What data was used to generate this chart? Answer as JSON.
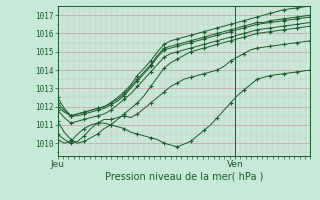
{
  "title": "Pression niveau de la mer( hPa )",
  "xlabel_jeu": "Jeu",
  "xlabel_ven": "Ven",
  "bg_color": "#c8e8d8",
  "grid_color_major": "#c8a0a0",
  "grid_color_minor": "#ddc0c0",
  "line_color": "#1a5c2a",
  "ylim": [
    1009.3,
    1017.5
  ],
  "xlim": [
    0,
    47
  ],
  "ven_x": 33,
  "yticks": [
    1010,
    1011,
    1012,
    1013,
    1014,
    1015,
    1016,
    1017
  ],
  "series": [
    [
      1012.5,
      1011.9,
      1011.5,
      1011.6,
      1011.7,
      1011.8,
      1011.9,
      1012.0,
      1012.2,
      1012.5,
      1012.8,
      1013.2,
      1013.7,
      1014.1,
      1014.5,
      1015.0,
      1015.4,
      1015.6,
      1015.7,
      1015.8,
      1015.9,
      1016.0,
      1016.1,
      1016.2,
      1016.3,
      1016.4,
      1016.5,
      1016.6,
      1016.7,
      1016.8,
      1016.9,
      1017.0,
      1017.1,
      1017.2,
      1017.3,
      1017.35,
      1017.4,
      1017.45,
      1017.5
    ],
    [
      1012.0,
      1011.7,
      1011.5,
      1011.6,
      1011.7,
      1011.8,
      1011.9,
      1012.0,
      1012.2,
      1012.4,
      1012.7,
      1013.1,
      1013.5,
      1013.9,
      1014.3,
      1014.8,
      1015.2,
      1015.3,
      1015.4,
      1015.5,
      1015.6,
      1015.7,
      1015.8,
      1015.9,
      1016.0,
      1016.1,
      1016.2,
      1016.3,
      1016.4,
      1016.5,
      1016.6,
      1016.6,
      1016.7,
      1016.75,
      1016.8,
      1016.85,
      1016.9,
      1016.95,
      1017.0
    ],
    [
      1012.2,
      1011.8,
      1011.5,
      1011.5,
      1011.6,
      1011.7,
      1011.8,
      1011.9,
      1012.1,
      1012.3,
      1012.6,
      1013.0,
      1013.4,
      1013.8,
      1014.2,
      1014.7,
      1015.1,
      1015.2,
      1015.3,
      1015.4,
      1015.5,
      1015.6,
      1015.7,
      1015.8,
      1015.9,
      1016.0,
      1016.1,
      1016.2,
      1016.3,
      1016.4,
      1016.5,
      1016.55,
      1016.6,
      1016.65,
      1016.7,
      1016.75,
      1016.8,
      1016.85,
      1016.9
    ],
    [
      1011.8,
      1011.4,
      1011.1,
      1011.2,
      1011.3,
      1011.4,
      1011.5,
      1011.6,
      1011.8,
      1012.1,
      1012.4,
      1012.7,
      1013.1,
      1013.5,
      1013.9,
      1014.3,
      1014.7,
      1014.9,
      1015.0,
      1015.1,
      1015.2,
      1015.3,
      1015.4,
      1015.5,
      1015.6,
      1015.7,
      1015.8,
      1015.9,
      1016.0,
      1016.1,
      1016.2,
      1016.25,
      1016.3,
      1016.35,
      1016.4,
      1016.45,
      1016.5,
      1016.55,
      1016.6
    ],
    [
      1011.2,
      1010.6,
      1010.2,
      1010.0,
      1010.1,
      1010.3,
      1010.5,
      1010.8,
      1011.0,
      1011.3,
      1011.6,
      1011.9,
      1012.2,
      1012.6,
      1013.1,
      1013.6,
      1014.1,
      1014.4,
      1014.6,
      1014.8,
      1015.0,
      1015.1,
      1015.2,
      1015.3,
      1015.4,
      1015.5,
      1015.6,
      1015.7,
      1015.8,
      1015.9,
      1016.0,
      1016.05,
      1016.1,
      1016.15,
      1016.2,
      1016.25,
      1016.3,
      1016.35,
      1016.4
    ],
    [
      1010.5,
      1010.2,
      1010.0,
      1010.1,
      1010.4,
      1010.8,
      1011.1,
      1011.3,
      1011.3,
      1011.4,
      1011.5,
      1011.4,
      1011.6,
      1011.9,
      1012.2,
      1012.5,
      1012.8,
      1013.1,
      1013.3,
      1013.5,
      1013.6,
      1013.7,
      1013.8,
      1013.9,
      1014.0,
      1014.2,
      1014.5,
      1014.7,
      1014.9,
      1015.1,
      1015.2,
      1015.25,
      1015.3,
      1015.35,
      1015.4,
      1015.45,
      1015.5,
      1015.55,
      1015.6
    ],
    [
      1010.2,
      1010.0,
      1010.1,
      1010.5,
      1010.8,
      1011.0,
      1011.1,
      1011.1,
      1011.0,
      1010.9,
      1010.8,
      1010.6,
      1010.5,
      1010.4,
      1010.3,
      1010.2,
      1010.0,
      1009.9,
      1009.8,
      1009.95,
      1010.1,
      1010.4,
      1010.7,
      1011.0,
      1011.4,
      1011.8,
      1012.2,
      1012.6,
      1012.9,
      1013.2,
      1013.5,
      1013.6,
      1013.7,
      1013.75,
      1013.8,
      1013.85,
      1013.9,
      1013.95,
      1014.0
    ]
  ]
}
